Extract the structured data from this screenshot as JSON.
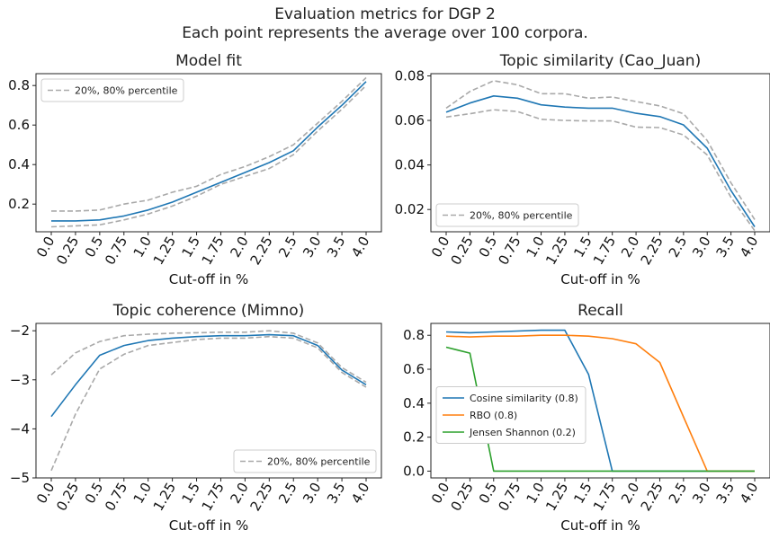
{
  "figure": {
    "title_line1": "Evaluation metrics for DGP 2",
    "title_line2": "Each point represents the average over 100 corpora."
  },
  "colors": {
    "mean": "#1f77b4",
    "percentile": "#a9a9a9",
    "rbo": "#ff7f0e",
    "jensen": "#2ca02c"
  },
  "chart_data": [
    {
      "type": "line",
      "title": "Model fit",
      "xlabel": "Cut-off in %",
      "ylabel": "",
      "categories": [
        "0.0",
        "0.25",
        "0.5",
        "0.75",
        "1.0",
        "1.25",
        "1.5",
        "1.75",
        "2.0",
        "2.25",
        "2.5",
        "3.0",
        "3.5",
        "4.0"
      ],
      "ylim": [
        0.06,
        0.86
      ],
      "yticks": [
        0.2,
        0.4,
        0.6,
        0.8
      ],
      "yticklabels": [
        "0.2",
        "0.4",
        "0.6",
        "0.8"
      ],
      "legend": "top-left",
      "legend_items": [
        "20%, 80% percentile"
      ],
      "series": [
        {
          "role": "mean",
          "values": [
            0.115,
            0.115,
            0.12,
            0.14,
            0.17,
            0.21,
            0.26,
            0.31,
            0.36,
            0.41,
            0.47,
            0.59,
            0.7,
            0.82
          ]
        },
        {
          "role": "upper",
          "name": "20%, 80% percentile",
          "values": [
            0.165,
            0.165,
            0.17,
            0.2,
            0.22,
            0.26,
            0.29,
            0.35,
            0.39,
            0.44,
            0.5,
            0.61,
            0.72,
            0.84
          ]
        },
        {
          "role": "lower",
          "values": [
            0.085,
            0.09,
            0.095,
            0.12,
            0.15,
            0.19,
            0.24,
            0.3,
            0.34,
            0.38,
            0.45,
            0.57,
            0.68,
            0.8
          ]
        }
      ]
    },
    {
      "type": "line",
      "title": "Topic similarity (Cao_Juan)",
      "xlabel": "Cut-off in %",
      "ylabel": "",
      "categories": [
        "0.0",
        "0.25",
        "0.5",
        "0.75",
        "1.0",
        "1.25",
        "1.5",
        "1.75",
        "2.0",
        "2.25",
        "2.5",
        "3.0",
        "3.5",
        "4.0"
      ],
      "ylim": [
        0.01,
        0.081
      ],
      "yticks": [
        0.02,
        0.04,
        0.06,
        0.08
      ],
      "yticklabels": [
        "0.02",
        "0.04",
        "0.06",
        "0.08"
      ],
      "legend": "bottom-left",
      "legend_items": [
        "20%, 80% percentile"
      ],
      "series": [
        {
          "role": "mean",
          "values": [
            0.0637,
            0.0678,
            0.071,
            0.07,
            0.067,
            0.066,
            0.0655,
            0.0655,
            0.0632,
            0.0617,
            0.058,
            0.0475,
            0.0285,
            0.0122
          ]
        },
        {
          "role": "upper",
          "name": "20%, 80% percentile",
          "values": [
            0.0655,
            0.073,
            0.0778,
            0.076,
            0.072,
            0.072,
            0.07,
            0.0705,
            0.0685,
            0.0665,
            0.063,
            0.051,
            0.032,
            0.0155
          ]
        },
        {
          "role": "lower",
          "values": [
            0.0615,
            0.063,
            0.0648,
            0.064,
            0.0605,
            0.06,
            0.0598,
            0.0598,
            0.057,
            0.0568,
            0.0535,
            0.0445,
            0.0255,
            0.0105
          ]
        }
      ]
    },
    {
      "type": "line",
      "title": "Topic coherence (Mimno)",
      "xlabel": "Cut-off in %",
      "ylabel": "",
      "categories": [
        "0.0",
        "0.25",
        "0.5",
        "0.75",
        "1.0",
        "1.25",
        "1.5",
        "1.75",
        "2.0",
        "2.25",
        "2.5",
        "3.0",
        "3.5",
        "4.0"
      ],
      "ylim": [
        -5.0,
        -1.85
      ],
      "yticks": [
        -5,
        -4,
        -3,
        -2
      ],
      "yticklabels": [
        "−5",
        "−4",
        "−3",
        "−2"
      ],
      "legend": "bottom-right",
      "legend_items": [
        "20%, 80% percentile"
      ],
      "series": [
        {
          "role": "mean",
          "values": [
            -3.75,
            -3.1,
            -2.5,
            -2.3,
            -2.2,
            -2.15,
            -2.12,
            -2.1,
            -2.1,
            -2.08,
            -2.1,
            -2.3,
            -2.8,
            -3.1
          ]
        },
        {
          "role": "upper",
          "name": "20%, 80% percentile",
          "values": [
            -2.9,
            -2.45,
            -2.22,
            -2.1,
            -2.07,
            -2.05,
            -2.04,
            -2.03,
            -2.03,
            -2.0,
            -2.05,
            -2.25,
            -2.75,
            -3.05
          ]
        },
        {
          "role": "lower",
          "values": [
            -4.85,
            -3.7,
            -2.78,
            -2.48,
            -2.3,
            -2.24,
            -2.18,
            -2.15,
            -2.15,
            -2.12,
            -2.15,
            -2.35,
            -2.85,
            -3.15
          ]
        }
      ]
    },
    {
      "type": "line",
      "title": "Recall",
      "xlabel": "Cut-off in %",
      "ylabel": "",
      "categories": [
        "0.0",
        "0.25",
        "0.5",
        "0.75",
        "1.0",
        "1.25",
        "1.5",
        "1.75",
        "2.0",
        "2.25",
        "2.5",
        "3.0",
        "3.5",
        "4.0"
      ],
      "ylim": [
        -0.04,
        0.87
      ],
      "yticks": [
        0.0,
        0.2,
        0.4,
        0.6,
        0.8
      ],
      "yticklabels": [
        "0.0",
        "0.2",
        "0.4",
        "0.6",
        "0.8"
      ],
      "legend": "center-left",
      "legend_items": [
        "Cosine similarity (0.8)",
        "RBO (0.8)",
        "Jensen Shannon (0.2)"
      ],
      "series": [
        {
          "name": "Cosine similarity (0.8)",
          "color": "#1f77b4",
          "values": [
            0.82,
            0.815,
            0.82,
            0.825,
            0.83,
            0.83,
            0.57,
            0.0,
            0.0,
            0.0,
            0.0,
            0.0,
            0.0,
            0.0
          ]
        },
        {
          "name": "RBO (0.8)",
          "color": "#ff7f0e",
          "values": [
            0.795,
            0.79,
            0.795,
            0.795,
            0.8,
            0.8,
            0.795,
            0.78,
            0.75,
            0.64,
            0.32,
            0.0,
            0.0,
            0.0
          ]
        },
        {
          "name": "Jensen Shannon (0.2)",
          "color": "#2ca02c",
          "values": [
            0.73,
            0.695,
            0.0,
            0.0,
            0.0,
            0.0,
            0.0,
            0.0,
            0.0,
            0.0,
            0.0,
            0.0,
            0.0,
            0.0
          ]
        }
      ]
    }
  ]
}
